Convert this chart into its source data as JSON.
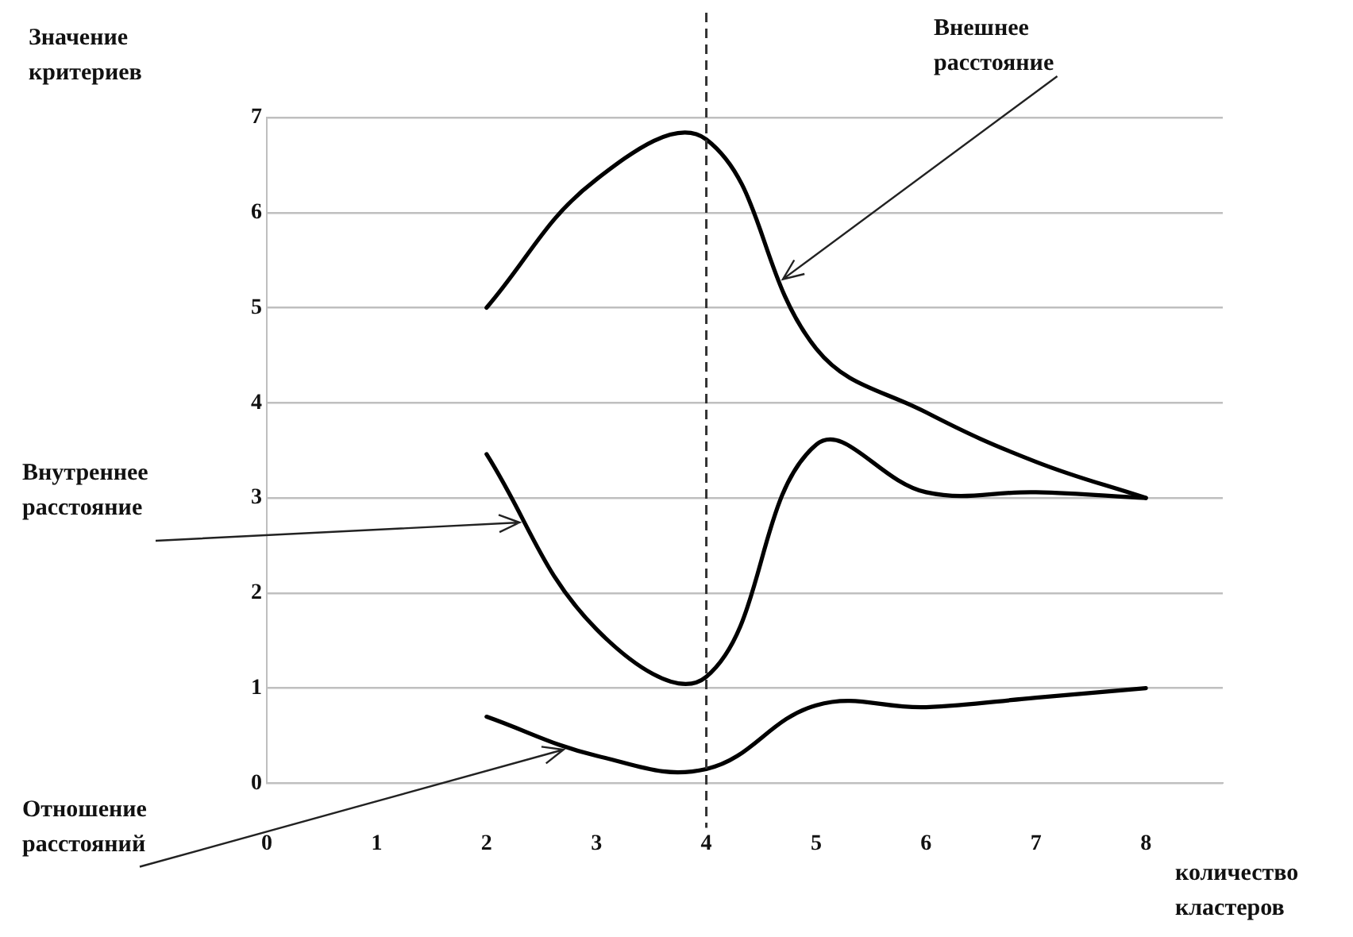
{
  "chart_data": {
    "type": "line",
    "xlabel": "количество кластеров",
    "ylabel": "Значение критериев",
    "x": [
      2,
      3,
      4,
      5,
      6,
      7,
      8
    ],
    "series": [
      {
        "color": "#000000",
        "values": [
          5,
          6.35,
          6.77,
          4.57,
          3.9,
          3.38,
          3
        ]
      },
      {
        "color": "#000000",
        "values": [
          3.46,
          1.62,
          1.12,
          3.56,
          3.06,
          3.06,
          3
        ]
      },
      {
        "color": "#000000",
        "values": [
          0.7,
          0.29,
          0.15,
          0.82,
          0.8,
          0.9,
          1
        ]
      }
    ],
    "xlim": [
      0,
      8.7
    ],
    "xticks": [
      0,
      1,
      2,
      3,
      4,
      5,
      6,
      7,
      8
    ],
    "ylim": [
      0,
      7
    ],
    "yticks": [
      0,
      1,
      2,
      3,
      4,
      5,
      6,
      7
    ],
    "grid": "y",
    "legend": false,
    "marker": "none",
    "line_style": "solid",
    "ref_lines": [
      {
        "axis": "x",
        "value": 4,
        "color": "#333333",
        "line_style": "dashed"
      }
    ],
    "annotations": [
      {
        "text": "Внешнее расстояние",
        "x": 4.7,
        "y": 5.3
      },
      {
        "text": "Внутреннее расстояние",
        "x": 2.3,
        "y": 2.75
      },
      {
        "text": "Отношение расстояний",
        "x": 2.7,
        "y": 0.35
      }
    ]
  }
}
